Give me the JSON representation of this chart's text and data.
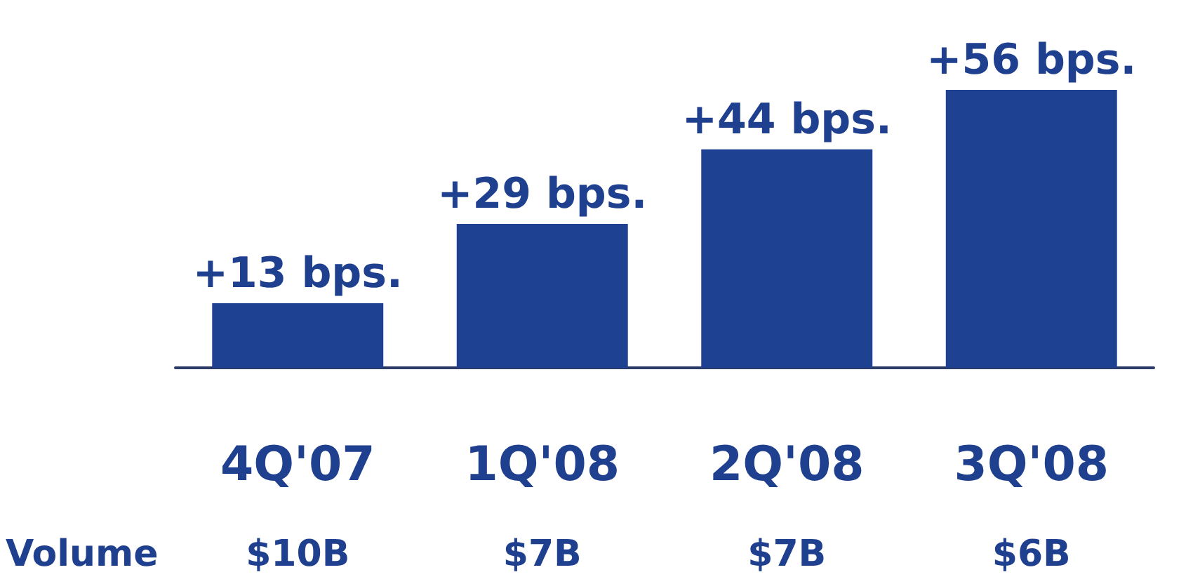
{
  "chart_data": {
    "type": "bar",
    "categories": [
      "4Q'07",
      "1Q'08",
      "2Q'08",
      "3Q'08"
    ],
    "values": [
      13,
      29,
      44,
      56
    ],
    "value_labels": [
      "+13 bps.",
      "+29 bps.",
      "+44 bps.",
      "+56 bps."
    ],
    "color": "#1f4192",
    "annotations": [
      "Volume",
      "$10B",
      "$7B",
      "$7B",
      "$6B"
    ]
  }
}
